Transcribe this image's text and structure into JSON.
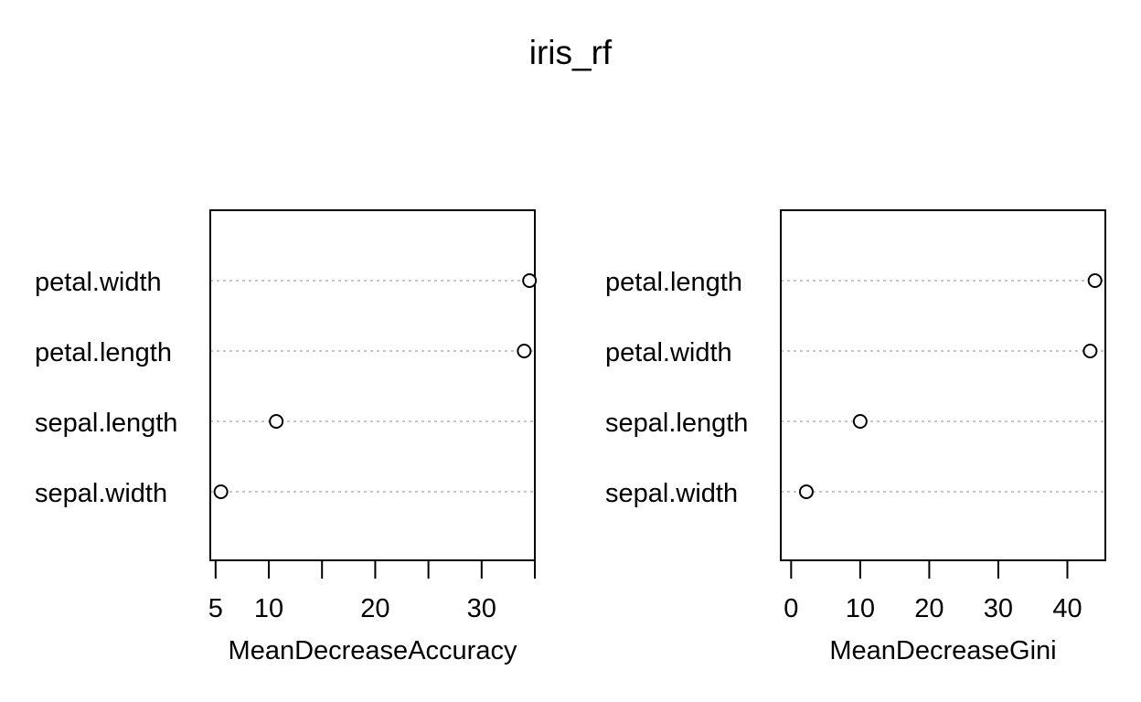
{
  "title": "iris_rf",
  "chart_data": [
    {
      "type": "scatter",
      "subtype": "dotchart",
      "xlabel": "MeanDecreaseAccuracy",
      "ylabel": "",
      "categories": [
        "petal.width",
        "petal.length",
        "sepal.length",
        "sepal.width"
      ],
      "values": [
        34.5,
        34.0,
        10.7,
        5.5
      ],
      "xlim": [
        4.5,
        35
      ],
      "ticks": [
        5,
        10,
        15,
        20,
        25,
        30,
        35
      ],
      "tick_labels": [
        "5",
        "10",
        "",
        "20",
        "",
        "30",
        ""
      ],
      "grid": "dotted horizontal per category"
    },
    {
      "type": "scatter",
      "subtype": "dotchart",
      "xlabel": "MeanDecreaseGini",
      "ylabel": "",
      "categories": [
        "petal.length",
        "petal.width",
        "sepal.length",
        "sepal.width"
      ],
      "values": [
        44.0,
        43.3,
        10.0,
        2.2
      ],
      "xlim": [
        -1.5,
        45.5
      ],
      "ticks": [
        0,
        10,
        20,
        30,
        40
      ],
      "tick_labels": [
        "0",
        "10",
        "20",
        "30",
        "40"
      ],
      "grid": "dotted horizontal per category"
    }
  ]
}
